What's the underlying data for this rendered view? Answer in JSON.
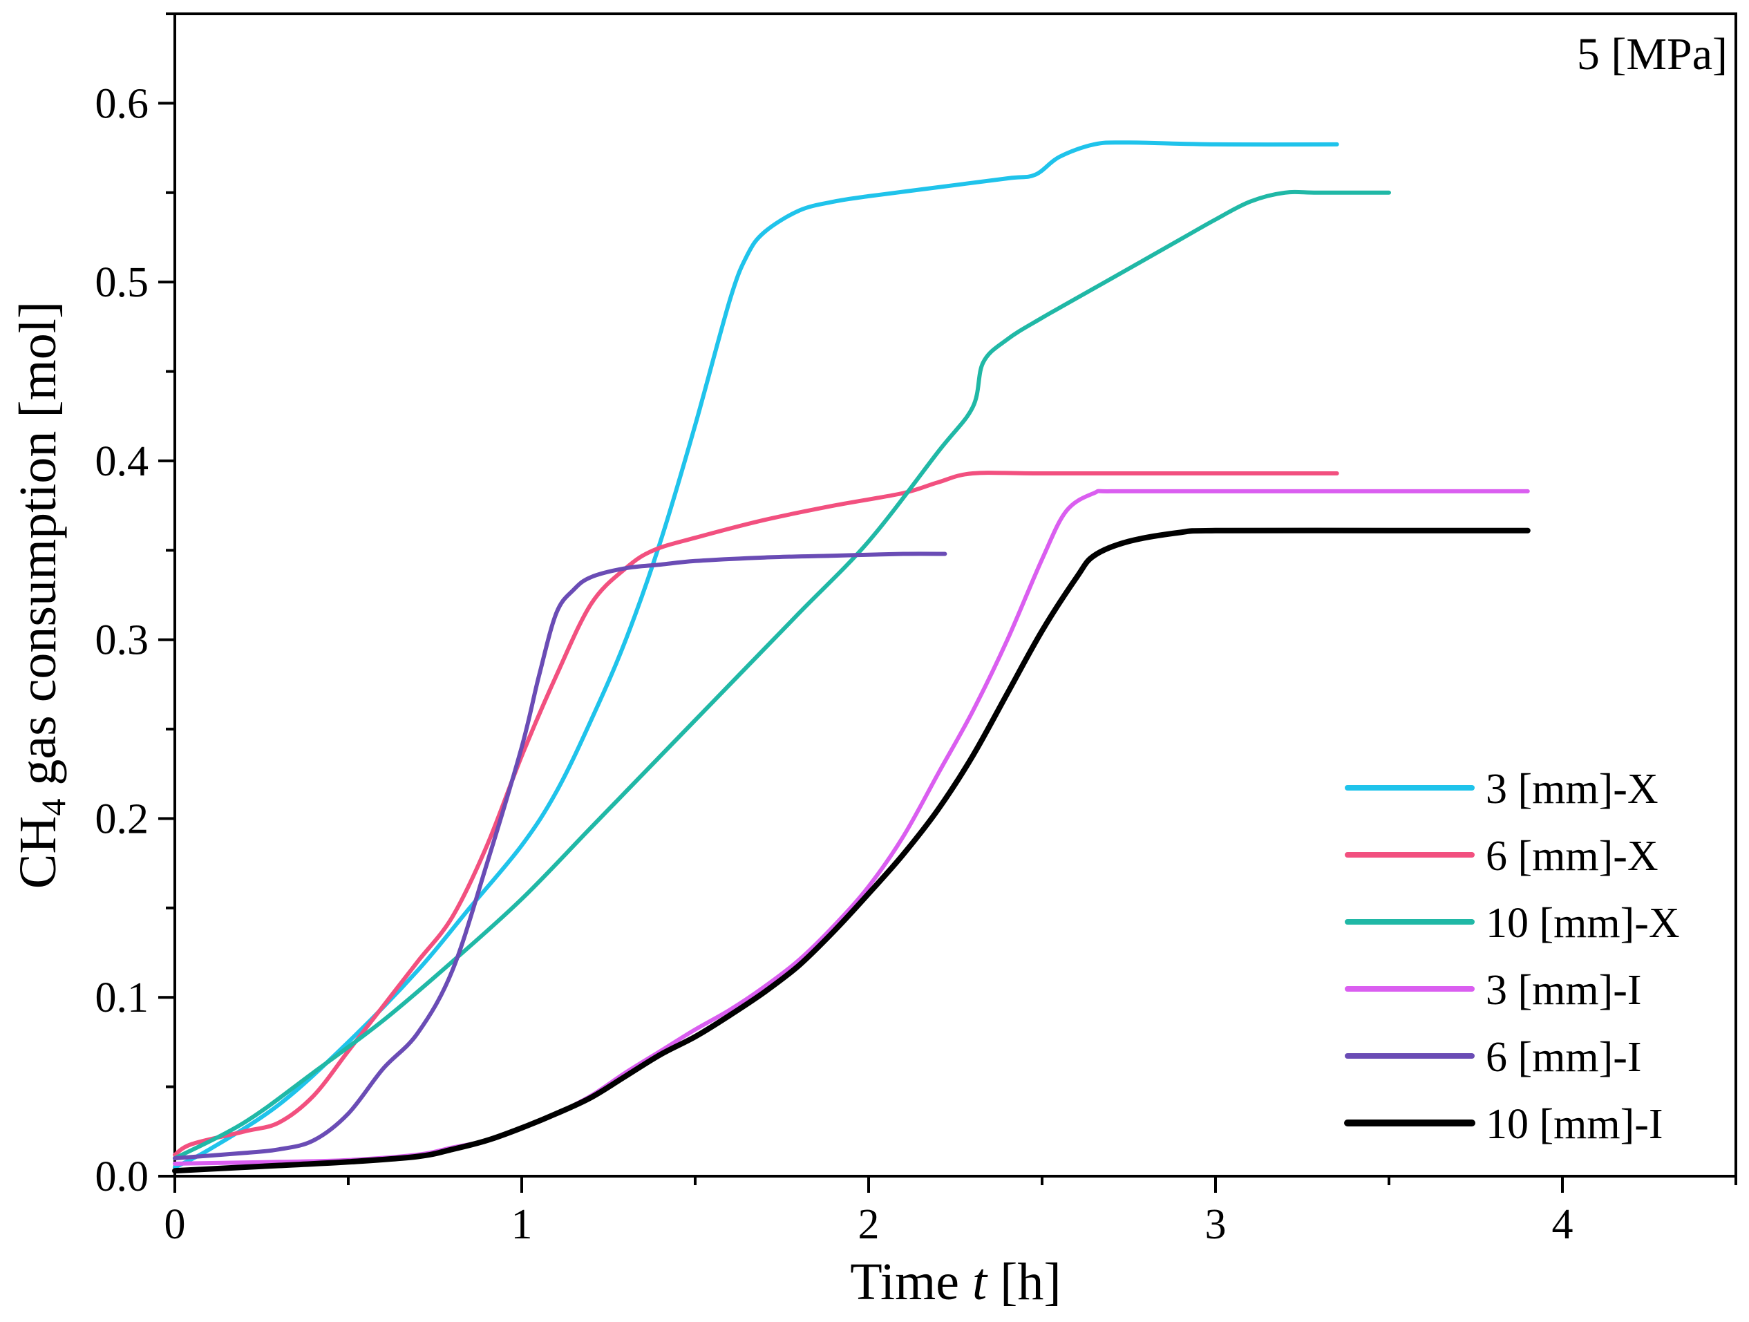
{
  "chart_data": {
    "type": "line",
    "title": "",
    "annotation": "5 [MPa]",
    "xlabel": {
      "prefix": "Time ",
      "var": "t",
      "suffix": " [h]"
    },
    "ylabel": {
      "prefix": "CH",
      "sub": "4",
      "suffix": " gas consumption [mol]"
    },
    "xlim": [
      0,
      4.5
    ],
    "ylim": [
      0,
      0.65
    ],
    "xticks": [
      0,
      1,
      2,
      3,
      4
    ],
    "xtick_labels": [
      "0",
      "1",
      "2",
      "3",
      "4"
    ],
    "yticks": [
      0.0,
      0.1,
      0.2,
      0.3,
      0.4,
      0.5,
      0.6
    ],
    "ytick_labels": [
      "0.0",
      "0.1",
      "0.2",
      "0.3",
      "0.4",
      "0.5",
      "0.6"
    ],
    "legend_position": "lower-right",
    "series": [
      {
        "name": "3 [mm]-X",
        "color": "#1fc3eb",
        "x": [
          0,
          0.1,
          0.3,
          0.5,
          0.7,
          0.85,
          1.0,
          1.1,
          1.2,
          1.3,
          1.4,
          1.5,
          1.6,
          1.65,
          1.7,
          1.8,
          1.9,
          2.0,
          2.2,
          2.4,
          2.48,
          2.55,
          2.65,
          2.75,
          3.0,
          3.35
        ],
        "y": [
          0.005,
          0.015,
          0.04,
          0.075,
          0.115,
          0.15,
          0.185,
          0.215,
          0.255,
          0.3,
          0.355,
          0.42,
          0.49,
          0.515,
          0.528,
          0.54,
          0.545,
          0.548,
          0.553,
          0.558,
          0.56,
          0.57,
          0.577,
          0.578,
          0.577,
          0.577
        ]
      },
      {
        "name": "6 [mm]-X",
        "color": "#f2507f",
        "x": [
          0,
          0.05,
          0.2,
          0.3,
          0.4,
          0.5,
          0.6,
          0.7,
          0.8,
          0.9,
          1.0,
          1.1,
          1.2,
          1.3,
          1.38,
          1.5,
          1.7,
          1.9,
          2.1,
          2.2,
          2.3,
          2.5,
          3.0,
          3.35
        ],
        "y": [
          0.012,
          0.018,
          0.025,
          0.03,
          0.045,
          0.07,
          0.095,
          0.12,
          0.145,
          0.185,
          0.235,
          0.28,
          0.32,
          0.34,
          0.35,
          0.357,
          0.367,
          0.375,
          0.382,
          0.388,
          0.393,
          0.393,
          0.393,
          0.393
        ]
      },
      {
        "name": "10 [mm]-X",
        "color": "#20b8a6",
        "x": [
          0,
          0.2,
          0.4,
          0.6,
          0.8,
          1.0,
          1.2,
          1.4,
          1.6,
          1.8,
          2.0,
          2.2,
          2.3,
          2.33,
          2.4,
          2.5,
          2.7,
          2.9,
          3.0,
          3.1,
          3.2,
          3.3,
          3.5
        ],
        "y": [
          0.01,
          0.03,
          0.058,
          0.087,
          0.12,
          0.155,
          0.195,
          0.235,
          0.275,
          0.315,
          0.355,
          0.405,
          0.43,
          0.455,
          0.468,
          0.48,
          0.502,
          0.524,
          0.535,
          0.545,
          0.55,
          0.55,
          0.55
        ]
      },
      {
        "name": "3 [mm]-I",
        "color": "#da5ef0",
        "x": [
          0,
          0.3,
          0.5,
          0.7,
          0.8,
          0.9,
          1.0,
          1.1,
          1.2,
          1.3,
          1.4,
          1.5,
          1.6,
          1.7,
          1.8,
          1.9,
          2.0,
          2.1,
          2.2,
          2.3,
          2.4,
          2.5,
          2.57,
          2.65,
          2.7,
          3.0,
          3.5,
          3.9
        ],
        "y": [
          0.007,
          0.008,
          0.009,
          0.012,
          0.016,
          0.02,
          0.027,
          0.035,
          0.045,
          0.058,
          0.07,
          0.082,
          0.093,
          0.106,
          0.121,
          0.14,
          0.162,
          0.19,
          0.225,
          0.26,
          0.3,
          0.345,
          0.372,
          0.382,
          0.383,
          0.383,
          0.383,
          0.383
        ]
      },
      {
        "name": "6 [mm]-I",
        "color": "#6a4cb5",
        "x": [
          0,
          0.2,
          0.3,
          0.4,
          0.5,
          0.6,
          0.7,
          0.8,
          0.9,
          1.0,
          1.05,
          1.1,
          1.15,
          1.2,
          1.3,
          1.4,
          1.5,
          1.7,
          1.9,
          2.1,
          2.22
        ],
        "y": [
          0.01,
          0.013,
          0.015,
          0.02,
          0.035,
          0.06,
          0.08,
          0.115,
          0.175,
          0.24,
          0.28,
          0.315,
          0.328,
          0.335,
          0.34,
          0.342,
          0.344,
          0.346,
          0.347,
          0.348,
          0.348
        ]
      },
      {
        "name": "10 [mm]-I",
        "color": "#000000",
        "x": [
          0,
          0.3,
          0.5,
          0.7,
          0.8,
          0.9,
          1.0,
          1.1,
          1.2,
          1.3,
          1.4,
          1.5,
          1.6,
          1.7,
          1.8,
          1.9,
          2.0,
          2.1,
          2.2,
          2.3,
          2.4,
          2.5,
          2.6,
          2.65,
          2.75,
          2.9,
          3.0,
          3.5,
          3.9
        ],
        "y": [
          0.003,
          0.006,
          0.008,
          0.011,
          0.015,
          0.02,
          0.027,
          0.035,
          0.044,
          0.056,
          0.068,
          0.078,
          0.09,
          0.103,
          0.118,
          0.137,
          0.158,
          0.18,
          0.205,
          0.235,
          0.27,
          0.305,
          0.335,
          0.347,
          0.355,
          0.36,
          0.361,
          0.361,
          0.361
        ]
      }
    ]
  }
}
